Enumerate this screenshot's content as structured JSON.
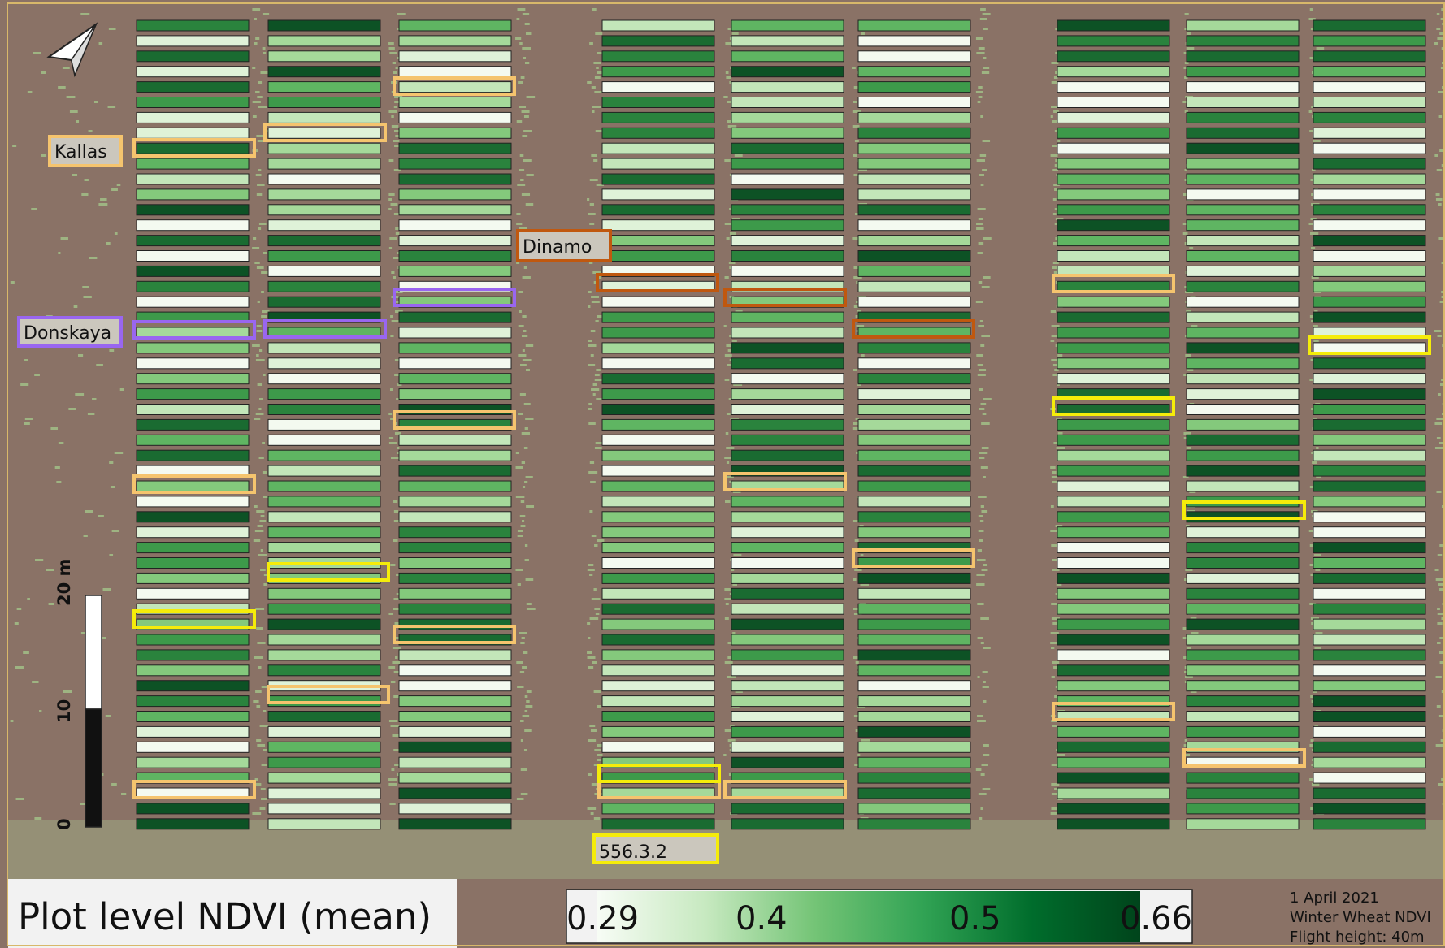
{
  "map": {
    "title": "Plot level NDVI (mean)",
    "north_arrow": "north-arrow-icon",
    "scale_bar": {
      "unit": "m",
      "ticks": [
        "0",
        "10",
        "20 m"
      ]
    },
    "legend": {
      "min_label": "0.29",
      "ticks": [
        "0.4",
        "0.5"
      ],
      "max_label": "0.66",
      "min": 0.29,
      "max": 0.66,
      "colors": [
        "#f7fcf5",
        "#c7e9c0",
        "#74c476",
        "#31a354",
        "#006d2c",
        "#00441b"
      ]
    },
    "info": {
      "date": "1 April 2021",
      "crop": "Winter Wheat NDVI",
      "flight": "Flight height: 40m"
    },
    "annotations": [
      {
        "label": "Kallas",
        "color": "#f5c46e"
      },
      {
        "label": "Donskaya",
        "color": "#9966f0"
      },
      {
        "label": "Dinamo",
        "color": "#c0580f"
      },
      {
        "label": "556.3.2",
        "color": "#f5ec0a"
      }
    ],
    "colors": {
      "soil": "#8a7266",
      "vegetation": "#9cc98a",
      "frame": "#d8b86a"
    }
  }
}
